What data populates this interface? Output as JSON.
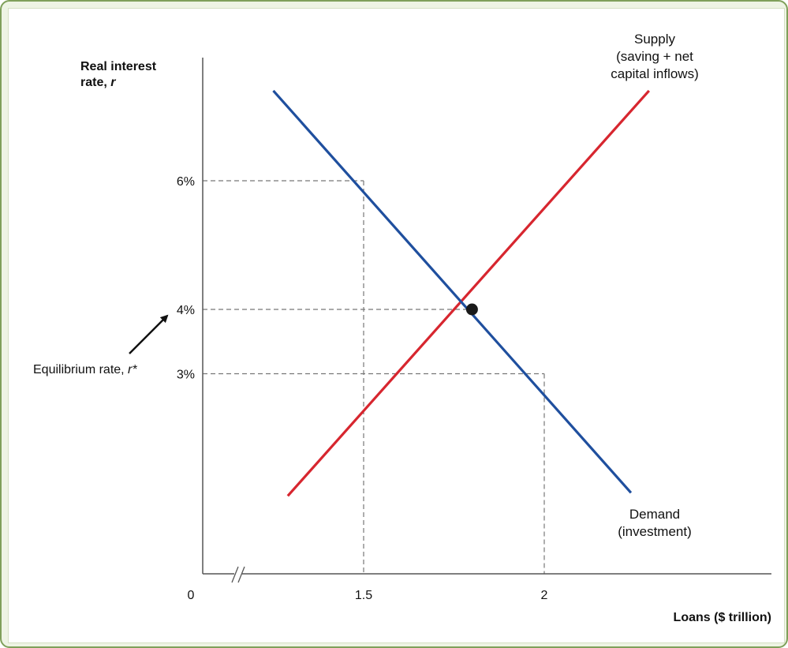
{
  "chart_data": {
    "type": "line",
    "ylabel_line1": "Real interest",
    "ylabel_line2": "rate, ",
    "ylabel_var": "r",
    "xlabel": "Loans ($ trillion)",
    "origin_label": "0",
    "x_ticks": [
      {
        "value": 1.5,
        "label": "1.5"
      },
      {
        "value": 2,
        "label": "2"
      }
    ],
    "y_ticks": [
      {
        "value": 6,
        "label": "6%"
      },
      {
        "value": 4,
        "label": "4%"
      },
      {
        "value": 3,
        "label": "3%"
      }
    ],
    "series": [
      {
        "name": "Supply",
        "label_lines": [
          "Supply",
          "(saving + net",
          "capital inflows)"
        ],
        "color": "#d7262f",
        "points": [
          [
            1.29,
            1.1
          ],
          [
            2.29,
            7.4
          ]
        ]
      },
      {
        "name": "Demand",
        "label_lines": [
          "Demand",
          "(investment)"
        ],
        "color": "#1f4f9e",
        "points": [
          [
            1.25,
            7.4
          ],
          [
            2.24,
            1.15
          ]
        ]
      }
    ],
    "equilibrium": {
      "x": 1.8,
      "y": 4,
      "label_text": "Equilibrium rate, ",
      "label_var": "r*"
    },
    "guides": [
      {
        "x": 1.5,
        "y": 6
      },
      {
        "x": 1.8,
        "y": 4
      },
      {
        "x": 2,
        "y": 3
      }
    ],
    "axis_break": true,
    "grid": false
  }
}
